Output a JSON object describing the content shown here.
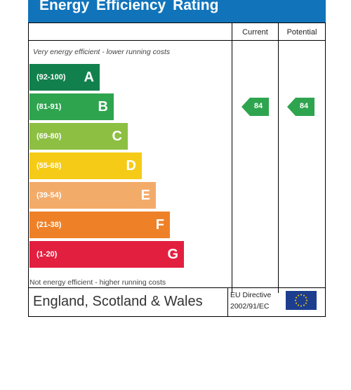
{
  "header": {
    "title": "Energy Efficiency Rating"
  },
  "columns": {
    "current": "Current",
    "potential": "Potential"
  },
  "captions": {
    "top": "Very energy efficient - lower running costs",
    "bottom": "Not energy efficient - higher running costs"
  },
  "bands": [
    {
      "range": "(92-100)",
      "letter": "A",
      "color": "#12804d"
    },
    {
      "range": "(81-91)",
      "letter": "B",
      "color": "#2ea44f"
    },
    {
      "range": "(69-80)",
      "letter": "C",
      "color": "#8dbf43"
    },
    {
      "range": "(55-68)",
      "letter": "D",
      "color": "#f5cb17"
    },
    {
      "range": "(39-54)",
      "letter": "E",
      "color": "#f3ab6a"
    },
    {
      "range": "(21-38)",
      "letter": "F",
      "color": "#ee8128"
    },
    {
      "range": "(1-20)",
      "letter": "G",
      "color": "#e21f3f"
    }
  ],
  "ratings": {
    "current": {
      "value": "84",
      "band": "B",
      "color": "#2ea44f"
    },
    "potential": {
      "value": "84",
      "band": "B",
      "color": "#2ea44f"
    }
  },
  "footer": {
    "region": "England, Scotland & Wales",
    "directive_line1": "EU Directive",
    "directive_line2": "2002/91/EC",
    "flag_icon": "eu-flag-icon",
    "flag_color": "#1d3e8f",
    "star_color": "#ffd700"
  }
}
